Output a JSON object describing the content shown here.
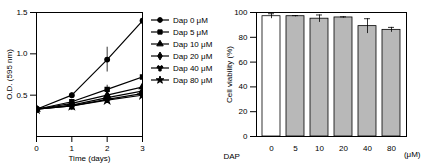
{
  "chart_data": [
    {
      "type": "line",
      "x_label": "Time (days)",
      "y_label": "O.D. (595 nm)",
      "x": [
        0,
        1,
        2,
        3
      ],
      "xlim": [
        0,
        3
      ],
      "xticks": [
        0,
        1,
        2,
        3
      ],
      "ylim": [
        0,
        1.5
      ],
      "yticks": [
        {
          "value": 0.5,
          "label": "0.5"
        },
        {
          "value": 1,
          "label": "1.0"
        },
        {
          "value": 1.5,
          "label": "1.5"
        }
      ],
      "legend": "right",
      "series": [
        {
          "name": "Dap 0 μM",
          "color": "#000000",
          "marker": "circle",
          "values": [
            0.33,
            0.5,
            0.93,
            1.4
          ],
          "errors": [
            0.02,
            0.03,
            0.15,
            0.03
          ]
        },
        {
          "name": "Dap 5 μM",
          "color": "#000000",
          "marker": "square",
          "values": [
            0.33,
            0.42,
            0.57,
            0.72
          ],
          "errors": [
            0.02,
            0.03,
            0.05,
            0.2
          ]
        },
        {
          "name": "Dap 10 μM",
          "color": "#000000",
          "marker": "triangle",
          "values": [
            0.33,
            0.4,
            0.5,
            0.6
          ],
          "errors": [
            0.02,
            0.03,
            0.04,
            0.08
          ]
        },
        {
          "name": "Dap 20 μM",
          "color": "#000000",
          "marker": "diamond",
          "values": [
            0.33,
            0.38,
            0.47,
            0.55
          ],
          "errors": [
            0.02,
            0.02,
            0.04,
            0.06
          ]
        },
        {
          "name": "Dap 40 μM",
          "color": "#000000",
          "marker": "wye",
          "values": [
            0.33,
            0.37,
            0.45,
            0.52
          ],
          "errors": [
            0.02,
            0.02,
            0.03,
            0.05
          ]
        },
        {
          "name": "Dap 80 μM",
          "color": "#000000",
          "marker": "star",
          "values": [
            0.33,
            0.37,
            0.44,
            0.5
          ],
          "errors": [
            0.02,
            0.02,
            0.03,
            0.05
          ]
        }
      ]
    },
    {
      "type": "bar",
      "x_label": "DAP",
      "x_unit_label": "(μM)",
      "y_label": "Cell viability (%)",
      "categories": [
        "0",
        "5",
        "10",
        "20",
        "40",
        "80"
      ],
      "values": [
        97,
        97,
        95,
        96,
        89,
        86
      ],
      "errors": [
        2,
        0.5,
        3,
        0.5,
        6,
        2
      ],
      "colors": [
        "#ffffff",
        "#b8b8b8",
        "#b8b8b8",
        "#b8b8b8",
        "#b8b8b8",
        "#b8b8b8"
      ],
      "ylim": [
        0,
        100
      ],
      "yticks": [
        0,
        20,
        40,
        60,
        80,
        100
      ]
    }
  ]
}
